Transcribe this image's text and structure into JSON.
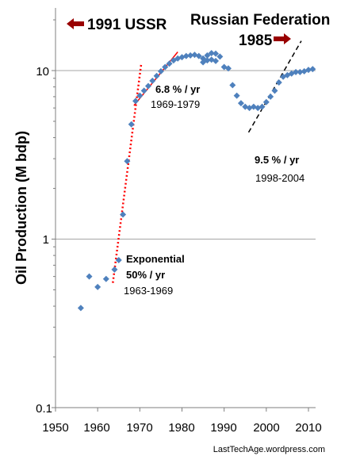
{
  "chart_data": {
    "type": "scatter",
    "ylabel": "Oil Production (M bdp)",
    "y_scale": "log",
    "xlim": [
      1950,
      2012
    ],
    "ylim": [
      0.1,
      20
    ],
    "x_ticks": [
      "1950",
      "1960",
      "1970",
      "1980",
      "1990",
      "2000",
      "2010"
    ],
    "y_ticks": [
      "0.1",
      "1",
      "10"
    ],
    "gridlines_y": [
      1,
      10
    ],
    "marker_color": "#4f81bd",
    "series": [
      {
        "points": [
          [
            1956,
            0.39
          ],
          [
            1958,
            0.6
          ],
          [
            1960,
            0.52
          ],
          [
            1962,
            0.58
          ],
          [
            1964,
            0.66
          ],
          [
            1965,
            0.75
          ],
          [
            1966,
            1.4
          ],
          [
            1967,
            2.9
          ],
          [
            1968,
            4.8
          ],
          [
            1969,
            6.6
          ],
          [
            1970,
            7.1
          ],
          [
            1971,
            7.6
          ],
          [
            1972,
            8.1
          ],
          [
            1973,
            8.7
          ],
          [
            1974,
            9.3
          ],
          [
            1975,
            9.9
          ],
          [
            1976,
            10.5
          ],
          [
            1977,
            11.0
          ],
          [
            1978,
            11.5
          ],
          [
            1979,
            11.8
          ],
          [
            1980,
            12.0
          ],
          [
            1981,
            12.2
          ],
          [
            1982,
            12.3
          ],
          [
            1983,
            12.4
          ],
          [
            1984,
            12.2
          ],
          [
            1985,
            11.8
          ],
          [
            1986,
            12.3
          ],
          [
            1987,
            12.7
          ],
          [
            1988,
            12.6
          ],
          [
            1989,
            12.1
          ],
          [
            1990,
            10.5
          ],
          [
            1991,
            10.3
          ],
          [
            1992,
            8.2
          ],
          [
            1993,
            7.1
          ],
          [
            1994,
            6.4
          ],
          [
            1995,
            6.1
          ],
          [
            1996,
            6.0
          ],
          [
            1997,
            6.1
          ],
          [
            1998,
            6.0
          ],
          [
            1999,
            6.1
          ],
          [
            2000,
            6.5
          ],
          [
            2001,
            7.0
          ],
          [
            2002,
            7.6
          ],
          [
            2003,
            8.5
          ],
          [
            2004,
            9.2
          ],
          [
            2005,
            9.4
          ],
          [
            2006,
            9.6
          ],
          [
            2007,
            9.8
          ],
          [
            2008,
            9.8
          ],
          [
            2009,
            9.9
          ],
          [
            2010,
            10.1
          ],
          [
            2011,
            10.2
          ],
          [
            1985,
            11.2
          ],
          [
            1986,
            11.5
          ],
          [
            1987,
            11.6
          ],
          [
            1988,
            11.4
          ]
        ]
      }
    ],
    "annotations": {
      "ussr": "1991 USSR",
      "russia": "Russian  Federation",
      "year1985": "1985",
      "growth1_rate": "6.8 % / yr",
      "growth1_years": "1969-1979",
      "growth2_rate": "9.5 % / yr",
      "growth2_years": "1998-2004",
      "exp_title": "Exponential",
      "exp_rate": "50% / yr",
      "exp_years": "1963-1969",
      "credit": "LastTechAge.wordpress.com"
    },
    "trend_lines": [
      {
        "style": "dotted",
        "color": "#ff0000",
        "from": [
          1963.6,
          0.55
        ],
        "to": [
          1970.3,
          10.8
        ]
      },
      {
        "style": "solid",
        "color": "#ff0000",
        "from": [
          1968.6,
          6.2
        ],
        "to": [
          1979.0,
          12.9
        ]
      },
      {
        "style": "dashed",
        "color": "#000000",
        "from": [
          1995.8,
          4.3
        ],
        "to": [
          2008.3,
          15.0
        ]
      }
    ],
    "arrow_color": "#990000"
  }
}
